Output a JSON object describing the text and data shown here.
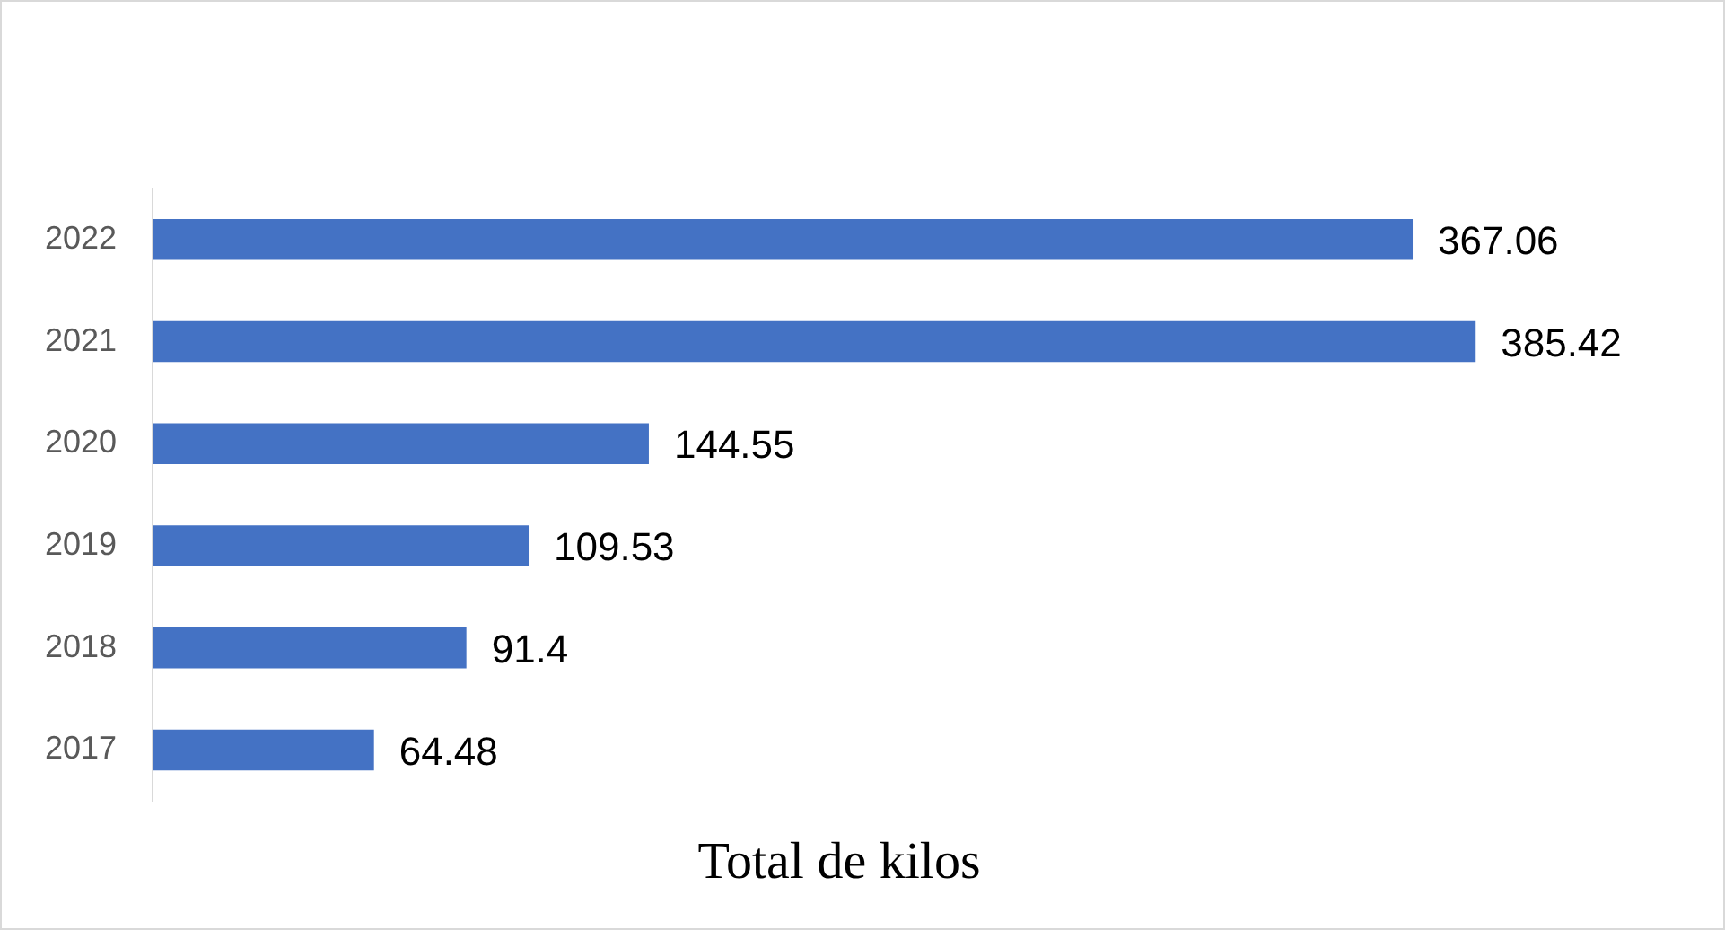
{
  "chart_data": {
    "type": "bar",
    "orientation": "horizontal",
    "xlabel": "Total de kilos",
    "categories": [
      "2022",
      "2021",
      "2020",
      "2019",
      "2018",
      "2017"
    ],
    "values": [
      367.06,
      385.42,
      144.55,
      109.53,
      91.4,
      64.48
    ],
    "color": "#4472c4",
    "data_labels": true,
    "grid": false,
    "legend": false,
    "tick_labels": "y"
  }
}
